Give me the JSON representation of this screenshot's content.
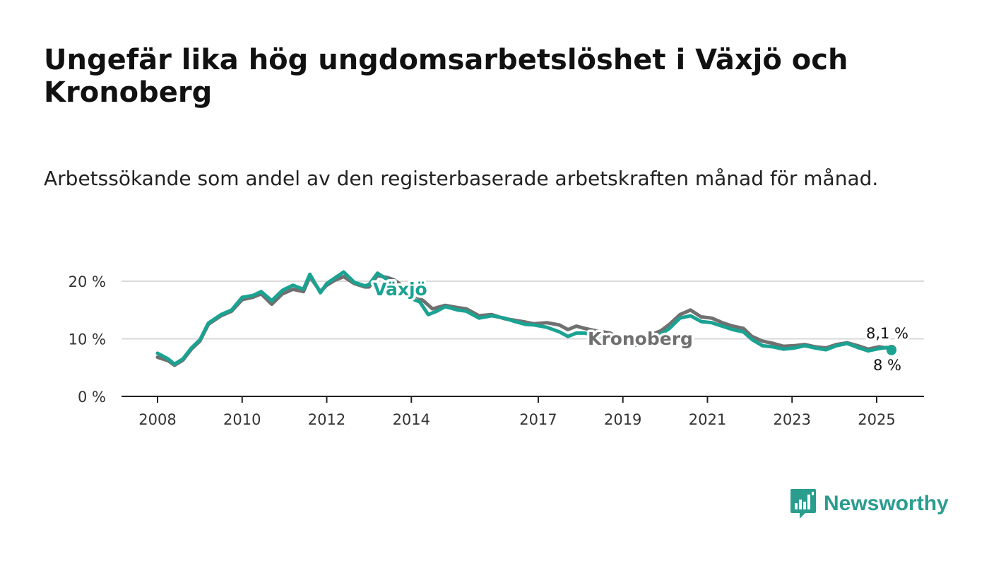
{
  "title": "Ungefär lika hög ungdomsarbetslöshet i Växjö och Kronoberg",
  "subtitle": "Arbetssökande som andel av den registerbaserade arbetskraften månad för månad.",
  "brand": {
    "name": "Newsworthy",
    "color": "#2a9d8f",
    "icon": "bar-chart-speech-bubble-icon"
  },
  "colors": {
    "vaxjo": "#1aa392",
    "kronoberg": "#707070",
    "grid": "#d9d9d9",
    "axis": "#222222"
  },
  "chart_data": {
    "type": "line",
    "xlim": [
      2008,
      2025.4
    ],
    "ylim": [
      0,
      20
    ],
    "x_ticks": [
      "2008",
      "2010",
      "2012",
      "2014",
      "2017",
      "2019",
      "2021",
      "2023",
      "2025"
    ],
    "y_ticks": [
      {
        "value": 0,
        "label": "0 %"
      },
      {
        "value": 10,
        "label": "10 %"
      },
      {
        "value": 20,
        "label": "20 %"
      }
    ],
    "grid": true,
    "series": [
      {
        "name": "Kronoberg",
        "color": "#707070",
        "end_label": "8,1 %",
        "points": [
          [
            2008.0,
            6.8
          ],
          [
            2008.25,
            6.2
          ],
          [
            2008.4,
            5.4
          ],
          [
            2008.6,
            6.3
          ],
          [
            2008.8,
            8.2
          ],
          [
            2009.0,
            9.6
          ],
          [
            2009.2,
            12.5
          ],
          [
            2009.5,
            14.0
          ],
          [
            2009.75,
            14.8
          ],
          [
            2010.0,
            16.8
          ],
          [
            2010.25,
            17.2
          ],
          [
            2010.45,
            17.8
          ],
          [
            2010.7,
            16.0
          ],
          [
            2010.95,
            17.8
          ],
          [
            2011.2,
            18.6
          ],
          [
            2011.45,
            18.2
          ],
          [
            2011.6,
            20.8
          ],
          [
            2011.85,
            18.2
          ],
          [
            2012.0,
            19.3
          ],
          [
            2012.2,
            20.2
          ],
          [
            2012.4,
            20.8
          ],
          [
            2012.65,
            19.6
          ],
          [
            2012.9,
            19.0
          ],
          [
            2013.0,
            19.0
          ],
          [
            2013.2,
            21.0
          ],
          [
            2013.45,
            20.6
          ],
          [
            2013.6,
            20.2
          ],
          [
            2014.1,
            17.5
          ],
          [
            2014.3,
            16.5
          ],
          [
            2014.5,
            15.2
          ],
          [
            2014.8,
            15.8
          ],
          [
            2015.1,
            15.4
          ],
          [
            2015.3,
            15.2
          ],
          [
            2015.6,
            14.0
          ],
          [
            2015.9,
            14.2
          ],
          [
            2016.2,
            13.5
          ],
          [
            2016.45,
            13.2
          ],
          [
            2016.7,
            12.9
          ],
          [
            2016.9,
            12.6
          ],
          [
            2017.2,
            12.8
          ],
          [
            2017.5,
            12.4
          ],
          [
            2017.7,
            11.6
          ],
          [
            2017.9,
            12.2
          ],
          [
            2018.1,
            11.8
          ],
          [
            2018.35,
            11.4
          ],
          [
            2018.7,
            11.0
          ],
          [
            2019.0,
            9.8
          ],
          [
            2019.3,
            9.6
          ],
          [
            2019.6,
            10.5
          ],
          [
            2019.9,
            11.4
          ],
          [
            2020.1,
            12.5
          ],
          [
            2020.35,
            14.2
          ],
          [
            2020.6,
            15.0
          ],
          [
            2020.85,
            13.8
          ],
          [
            2021.1,
            13.6
          ],
          [
            2021.35,
            12.8
          ],
          [
            2021.6,
            12.2
          ],
          [
            2021.85,
            11.8
          ],
          [
            2022.05,
            10.4
          ],
          [
            2022.3,
            9.6
          ],
          [
            2022.55,
            9.2
          ],
          [
            2022.8,
            8.7
          ],
          [
            2023.05,
            8.8
          ],
          [
            2023.3,
            9.0
          ],
          [
            2023.55,
            8.6
          ],
          [
            2023.8,
            8.4
          ],
          [
            2024.05,
            9.0
          ],
          [
            2024.3,
            9.3
          ],
          [
            2024.55,
            8.8
          ],
          [
            2024.8,
            8.2
          ],
          [
            2025.05,
            8.6
          ],
          [
            2025.25,
            8.4
          ],
          [
            2025.35,
            8.1
          ]
        ]
      },
      {
        "name": "Växjö",
        "color": "#1aa392",
        "end_label": "8 %",
        "points": [
          [
            2008.0,
            7.5
          ],
          [
            2008.25,
            6.5
          ],
          [
            2008.4,
            5.6
          ],
          [
            2008.6,
            6.5
          ],
          [
            2008.8,
            8.4
          ],
          [
            2009.0,
            9.8
          ],
          [
            2009.2,
            12.7
          ],
          [
            2009.5,
            14.2
          ],
          [
            2009.75,
            15.0
          ],
          [
            2010.0,
            17.2
          ],
          [
            2010.25,
            17.5
          ],
          [
            2010.45,
            18.2
          ],
          [
            2010.7,
            16.6
          ],
          [
            2010.95,
            18.4
          ],
          [
            2011.2,
            19.3
          ],
          [
            2011.45,
            18.6
          ],
          [
            2011.6,
            21.2
          ],
          [
            2011.85,
            18.0
          ],
          [
            2012.0,
            19.6
          ],
          [
            2012.2,
            20.6
          ],
          [
            2012.4,
            21.6
          ],
          [
            2012.65,
            19.8
          ],
          [
            2012.9,
            19.2
          ],
          [
            2013.0,
            19.4
          ],
          [
            2013.2,
            21.4
          ],
          [
            2013.45,
            20.2
          ],
          [
            2013.6,
            19.2
          ],
          [
            2014.0,
            17.0
          ],
          [
            2014.2,
            16.4
          ],
          [
            2014.4,
            14.2
          ],
          [
            2014.6,
            14.8
          ],
          [
            2014.8,
            15.6
          ],
          [
            2015.1,
            15.0
          ],
          [
            2015.3,
            14.8
          ],
          [
            2015.6,
            13.6
          ],
          [
            2015.9,
            14.0
          ],
          [
            2016.2,
            13.6
          ],
          [
            2016.45,
            13.0
          ],
          [
            2016.7,
            12.5
          ],
          [
            2016.9,
            12.4
          ],
          [
            2017.2,
            12.0
          ],
          [
            2017.5,
            11.2
          ],
          [
            2017.7,
            10.4
          ],
          [
            2017.9,
            11.0
          ],
          [
            2018.1,
            11.0
          ],
          [
            2018.35,
            10.6
          ],
          [
            2018.7,
            10.4
          ],
          [
            2019.0,
            9.2
          ],
          [
            2019.3,
            8.9
          ],
          [
            2019.6,
            9.8
          ],
          [
            2019.9,
            10.8
          ],
          [
            2020.1,
            11.8
          ],
          [
            2020.35,
            13.6
          ],
          [
            2020.6,
            14.0
          ],
          [
            2020.85,
            13.0
          ],
          [
            2021.1,
            12.8
          ],
          [
            2021.35,
            12.2
          ],
          [
            2021.6,
            11.6
          ],
          [
            2021.85,
            11.2
          ],
          [
            2022.05,
            9.9
          ],
          [
            2022.3,
            8.8
          ],
          [
            2022.55,
            8.6
          ],
          [
            2022.8,
            8.2
          ],
          [
            2023.05,
            8.4
          ],
          [
            2023.3,
            8.8
          ],
          [
            2023.55,
            8.4
          ],
          [
            2023.8,
            8.1
          ],
          [
            2024.05,
            8.8
          ],
          [
            2024.3,
            9.2
          ],
          [
            2024.55,
            8.5
          ],
          [
            2024.8,
            7.9
          ],
          [
            2025.05,
            8.3
          ],
          [
            2025.25,
            8.5
          ],
          [
            2025.35,
            8.0
          ]
        ]
      }
    ]
  }
}
